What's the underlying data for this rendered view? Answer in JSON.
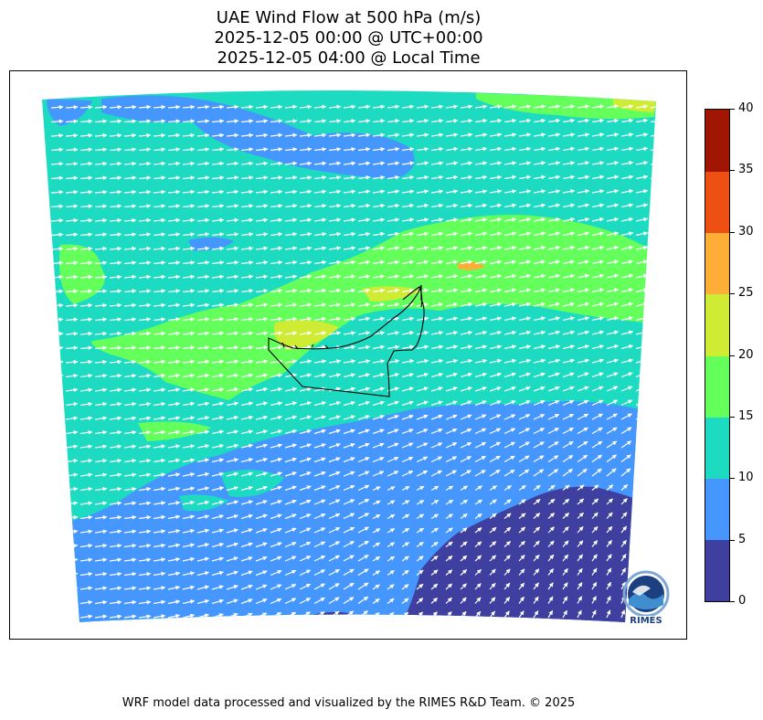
{
  "title": {
    "line1": "UAE Wind Flow at 500 hPa (m/s)",
    "line2": "2025-12-05 00:00 @ UTC+00:00",
    "line3": "2025-12-05 04:00 @ Local Time"
  },
  "colorbar": {
    "ticks": [
      "0",
      "5",
      "10",
      "15",
      "20",
      "25",
      "30",
      "35",
      "40"
    ],
    "levels": [
      {
        "min": 0,
        "max": 5,
        "color": "#3f3f9f"
      },
      {
        "min": 5,
        "max": 10,
        "color": "#4596fd"
      },
      {
        "min": 10,
        "max": 15,
        "color": "#1ddbc1"
      },
      {
        "min": 15,
        "max": 20,
        "color": "#64ff5b"
      },
      {
        "min": 20,
        "max": 25,
        "color": "#cfeb34"
      },
      {
        "min": 25,
        "max": 30,
        "color": "#fdae36"
      },
      {
        "min": 30,
        "max": 35,
        "color": "#ee5014"
      },
      {
        "min": 35,
        "max": 40,
        "color": "#a01602"
      }
    ]
  },
  "logo": {
    "text": "RIMES"
  },
  "footer": "WRF model data processed and visualized by the RIMES R&D Team. © 2025"
}
